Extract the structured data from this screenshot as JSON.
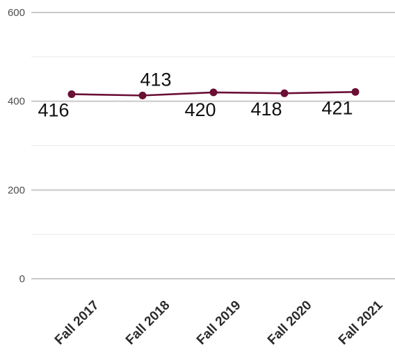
{
  "chart_data": {
    "type": "line",
    "title": "",
    "xlabel": "",
    "ylabel": "",
    "categories": [
      "Fall 2017",
      "Fall 2018",
      "Fall 2019",
      "Fall 2020",
      "Fall 2021"
    ],
    "series": [
      {
        "values": [
          416,
          413,
          420,
          418,
          421
        ],
        "color": "#6b0f35"
      }
    ],
    "ylim": [
      0,
      600
    ],
    "yticks": [
      0,
      200,
      400,
      600
    ],
    "y_tick_labels": [
      "0",
      "200",
      "400",
      "600"
    ],
    "minor_gridlines": [
      100,
      300,
      500
    ],
    "grid": true,
    "legend": "none"
  }
}
